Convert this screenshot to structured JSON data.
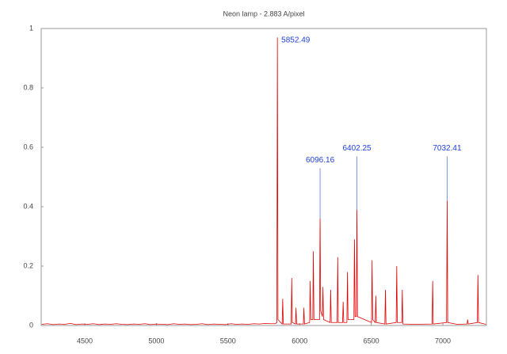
{
  "chart_data": {
    "type": "line",
    "title": "Neon lamp - 2.883 A/pixel",
    "color": "#e00000",
    "annotation_color": "#1c3fd6",
    "xlim": [
      4196,
      7304
    ],
    "ylim": [
      0,
      1
    ],
    "xticks": [
      4500,
      5000,
      5500,
      6000,
      6500,
      7000
    ],
    "yticks": [
      0,
      0.2,
      0.4,
      0.6,
      0.8,
      1
    ],
    "x": [
      4200,
      4240,
      4280,
      4320,
      4360,
      4400,
      4440,
      4480,
      4520,
      4560,
      4600,
      4640,
      4680,
      4720,
      4760,
      4800,
      4840,
      4880,
      4920,
      4960,
      5000,
      5040,
      5080,
      5120,
      5160,
      5200,
      5240,
      5280,
      5320,
      5360,
      5400,
      5440,
      5480,
      5520,
      5560,
      5600,
      5640,
      5680,
      5720,
      5760,
      5800,
      5830,
      5841,
      5845,
      5849,
      5878,
      5882,
      5886,
      5941,
      5945,
      5949,
      5971,
      5975,
      5979,
      6026,
      6030,
      6034,
      6070,
      6074,
      6078,
      6092,
      6096,
      6100,
      6139,
      6143,
      6147,
      6159,
      6163,
      6167,
      6213,
      6217,
      6221,
      6262,
      6266,
      6270,
      6300,
      6304,
      6308,
      6330,
      6334,
      6338,
      6379,
      6383,
      6387,
      6396,
      6400,
      6404,
      6502,
      6506,
      6510,
      6528,
      6532,
      6536,
      6595,
      6599,
      6603,
      6674,
      6678,
      6682,
      6713,
      6717,
      6721,
      6800,
      6925,
      6929,
      6933,
      7026,
      7030,
      7034,
      7100,
      7169,
      7173,
      7177,
      7241,
      7245,
      7249,
      7300
    ],
    "values": [
      0.004,
      0.006,
      0.003,
      0.005,
      0.004,
      0.007,
      0.003,
      0.005,
      0.004,
      0.006,
      0.003,
      0.005,
      0.004,
      0.006,
      0.004,
      0.003,
      0.005,
      0.004,
      0.006,
      0.003,
      0.005,
      0.004,
      0.003,
      0.006,
      0.004,
      0.005,
      0.003,
      0.004,
      0.006,
      0.003,
      0.005,
      0.004,
      0.003,
      0.006,
      0.004,
      0.005,
      0.004,
      0.006,
      0.005,
      0.007,
      0.006,
      0.006,
      0.01,
      0.97,
      0.02,
      0.005,
      0.09,
      0.005,
      0.005,
      0.16,
      0.01,
      0.005,
      0.06,
      0.005,
      0.005,
      0.06,
      0.005,
      0.01,
      0.15,
      0.02,
      0.02,
      0.25,
      0.02,
      0.02,
      0.37,
      0.05,
      0.03,
      0.13,
      0.02,
      0.01,
      0.12,
      0.01,
      0.01,
      0.23,
      0.01,
      0.01,
      0.08,
      0.01,
      0.01,
      0.18,
      0.02,
      0.02,
      0.29,
      0.03,
      0.03,
      0.4,
      0.03,
      0.01,
      0.22,
      0.02,
      0.01,
      0.1,
      0.01,
      0.005,
      0.12,
      0.005,
      0.01,
      0.2,
      0.01,
      0.01,
      0.12,
      0.005,
      0.004,
      0.005,
      0.15,
      0.005,
      0.01,
      0.43,
      0.01,
      0.004,
      0.005,
      0.02,
      0.005,
      0.01,
      0.17,
      0.01,
      0.004
    ],
    "annotations": [
      {
        "text": "5852.49",
        "x": 5845,
        "y": 0.96
      },
      {
        "text": "6096.16",
        "x": 6143,
        "y": 0.54
      },
      {
        "text": "6402.25",
        "x": 6400,
        "y": 0.58
      },
      {
        "text": "7032.41",
        "x": 7030,
        "y": 0.58
      }
    ]
  }
}
